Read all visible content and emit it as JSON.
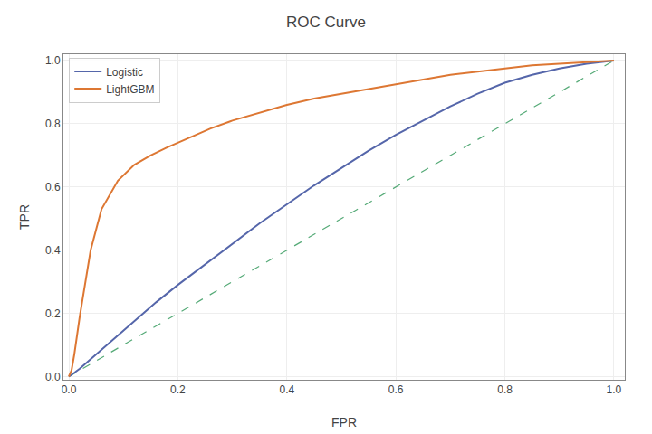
{
  "chart_data": {
    "type": "line",
    "title": "ROC Curve",
    "x_label": "FPR",
    "y_label": "TPR",
    "series": [
      {
        "color": "#55aa77",
        "line_style": "dashed",
        "x": [
          0,
          1
        ],
        "values": [
          0,
          1
        ]
      },
      {
        "name": "Logistic",
        "color": "#5566aa",
        "line_style": "solid",
        "x": [
          0.0,
          0.005,
          0.01,
          0.02,
          0.03,
          0.05,
          0.07,
          0.1,
          0.13,
          0.16,
          0.2,
          0.25,
          0.3,
          0.35,
          0.4,
          0.45,
          0.5,
          0.55,
          0.6,
          0.65,
          0.7,
          0.75,
          0.8,
          0.85,
          0.9,
          0.95,
          1.0
        ],
        "values": [
          0.0,
          0.005,
          0.012,
          0.025,
          0.04,
          0.07,
          0.1,
          0.145,
          0.19,
          0.235,
          0.29,
          0.355,
          0.42,
          0.485,
          0.545,
          0.605,
          0.66,
          0.715,
          0.765,
          0.81,
          0.855,
          0.895,
          0.93,
          0.955,
          0.975,
          0.99,
          1.0
        ]
      },
      {
        "name": "LightGBM",
        "color": "#dd7733",
        "line_style": "solid",
        "x": [
          0.0,
          0.005,
          0.01,
          0.02,
          0.04,
          0.06,
          0.09,
          0.12,
          0.15,
          0.18,
          0.22,
          0.26,
          0.3,
          0.35,
          0.4,
          0.45,
          0.5,
          0.55,
          0.6,
          0.65,
          0.7,
          0.75,
          0.8,
          0.85,
          0.9,
          0.95,
          1.0
        ],
        "values": [
          0.0,
          0.02,
          0.07,
          0.19,
          0.4,
          0.53,
          0.62,
          0.67,
          0.7,
          0.725,
          0.755,
          0.785,
          0.81,
          0.835,
          0.86,
          0.88,
          0.895,
          0.91,
          0.925,
          0.94,
          0.955,
          0.965,
          0.975,
          0.985,
          0.99,
          0.995,
          1.0
        ]
      }
    ],
    "xlim": [
      -0.01,
      1.02
    ],
    "ylim": [
      -0.01,
      1.02
    ],
    "xticks": [
      {
        "value": 0,
        "label": "0.0"
      },
      0.2,
      0.4,
      0.6,
      0.8,
      {
        "value": 1,
        "label": "1.0"
      }
    ],
    "yticks": [
      {
        "value": 0,
        "label": "0.0"
      },
      0.2,
      0.4,
      0.6,
      0.8,
      {
        "value": 1,
        "label": "1.0"
      }
    ],
    "grid": true,
    "legend": "upper left"
  }
}
